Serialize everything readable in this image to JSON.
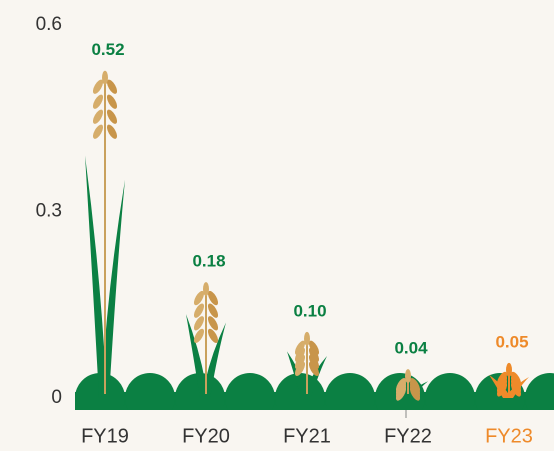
{
  "chart_data": {
    "type": "pictogram",
    "categories": [
      "FY19",
      "FY20",
      "FY21",
      "FY22",
      "FY23"
    ],
    "values": [
      0.52,
      0.18,
      0.1,
      0.04,
      0.05
    ],
    "value_labels": [
      "0.52",
      "0.18",
      "0.10",
      "0.04",
      "0.05"
    ],
    "colors": [
      "#0b8043",
      "#0b8043",
      "#0b8043",
      "#0b8043",
      "#ee8a2a"
    ],
    "ylim": [
      0,
      0.6
    ],
    "yticks": [
      0,
      0.3,
      0.6
    ]
  }
}
